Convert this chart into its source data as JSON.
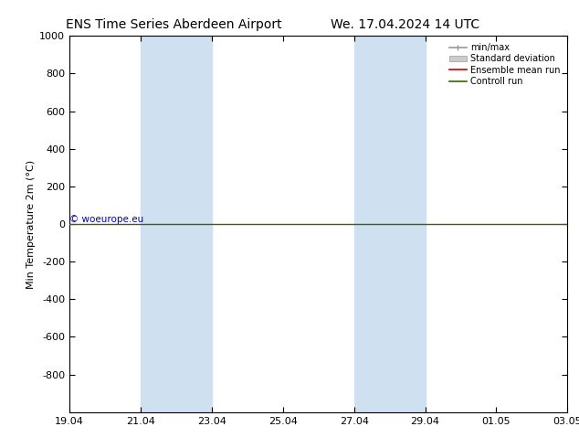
{
  "title_left": "ENS Time Series Aberdeen Airport",
  "title_right": "We. 17.04.2024 14 UTC",
  "ylabel": "Min Temperature 2m (°C)",
  "ylim_top": -1000,
  "ylim_bottom": 1000,
  "yticks": [
    -800,
    -600,
    -400,
    -200,
    0,
    200,
    400,
    600,
    800,
    1000
  ],
  "xtick_dates": [
    "19.04",
    "21.04",
    "23.04",
    "25.04",
    "27.04",
    "29.04",
    "01.05",
    "03.05"
  ],
  "xtick_values": [
    0,
    2,
    4,
    6,
    8,
    10,
    12,
    14
  ],
  "x_total": 14,
  "shade_bands": [
    {
      "x_start": 2,
      "x_end": 4,
      "color": "#cfe0f0",
      "alpha": 1.0
    },
    {
      "x_start": 8,
      "x_end": 10,
      "color": "#cfe0f0",
      "alpha": 1.0
    }
  ],
  "control_run_y": 0,
  "control_run_color": "#336600",
  "ensemble_mean_color": "#cc0000",
  "min_max_color": "#999999",
  "std_dev_color": "#cccccc",
  "watermark": "© woeurope.eu",
  "watermark_color": "#0000bb",
  "background_color": "#ffffff",
  "legend_entries": [
    "min/max",
    "Standard deviation",
    "Ensemble mean run",
    "Controll run"
  ],
  "legend_line_colors": [
    "#999999",
    "#cccccc",
    "#cc0000",
    "#336600"
  ],
  "title_fontsize": 10,
  "axis_fontsize": 8,
  "legend_fontsize": 7
}
